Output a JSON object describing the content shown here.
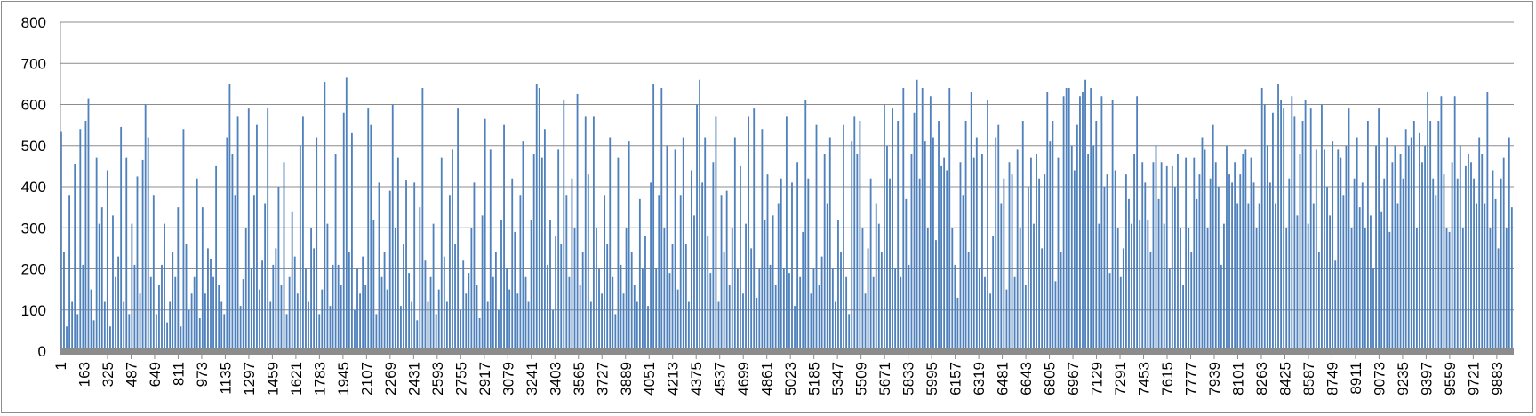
{
  "chart_data": {
    "type": "bar",
    "title": "",
    "xlabel": "",
    "ylabel": "",
    "ylim": [
      0,
      800
    ],
    "yticks": [
      "0",
      "100",
      "200",
      "300",
      "400",
      "500",
      "600",
      "700",
      "800"
    ],
    "x_range": [
      1,
      10000
    ],
    "x_tick_step": 162,
    "xticks": [
      "1",
      "163",
      "325",
      "487",
      "649",
      "811",
      "973",
      "1135",
      "1297",
      "1459",
      "1621",
      "1783",
      "1945",
      "2107",
      "2269",
      "2431",
      "2593",
      "2755",
      "2917",
      "3079",
      "3241",
      "3403",
      "3565",
      "3727",
      "3889",
      "4051",
      "4213",
      "4375",
      "4537",
      "4699",
      "4861",
      "5023",
      "5185",
      "5347",
      "5509",
      "5671",
      "5833",
      "5995",
      "6157",
      "6319",
      "6481",
      "6643",
      "6805",
      "6967",
      "7129",
      "7291",
      "7453",
      "7615",
      "7777",
      "7939",
      "8101",
      "8263",
      "8425",
      "8587",
      "8749",
      "8911",
      "9073",
      "9235",
      "9397",
      "9559",
      "9721",
      "9883"
    ],
    "grid": true,
    "legend": "none",
    "bar_color": "#4f81bd",
    "baseline_color": "#8c8c8c",
    "gridline_color": "#8c8c8c",
    "series": [
      {
        "values": [
          535,
          240,
          60,
          380,
          120,
          455,
          90,
          540,
          210,
          560,
          615,
          150,
          75,
          470,
          310,
          350,
          120,
          440,
          60,
          330,
          180,
          230,
          545,
          120,
          470,
          90,
          310,
          210,
          425,
          140,
          465,
          600,
          520,
          180,
          380,
          90,
          160,
          210,
          310,
          70,
          120,
          240,
          180,
          350,
          60,
          540,
          260,
          100,
          140,
          180,
          420,
          80,
          350,
          140,
          250,
          225,
          180,
          450,
          160,
          120,
          90,
          520,
          650,
          480,
          380,
          570,
          110,
          175,
          300,
          590,
          200,
          380,
          550,
          150,
          220,
          360,
          590,
          120,
          210,
          250,
          400,
          160,
          460,
          90,
          180,
          340,
          230,
          140,
          500,
          570,
          200,
          120,
          300,
          250,
          520,
          90,
          150,
          655,
          310,
          110,
          210,
          480,
          210,
          160,
          580,
          665,
          240,
          530,
          100,
          200,
          140,
          230,
          160,
          590,
          550,
          320,
          90,
          410,
          180,
          240,
          150,
          390,
          600,
          300,
          470,
          110,
          260,
          415,
          190,
          120,
          410,
          75,
          350,
          640,
          220,
          120,
          180,
          310,
          90,
          150,
          470,
          230,
          120,
          380,
          490,
          260,
          590,
          100,
          220,
          140,
          190,
          300,
          410,
          160,
          80,
          330,
          565,
          120,
          490,
          180,
          240,
          100,
          320,
          550,
          200,
          150,
          420,
          290,
          140,
          380,
          510,
          180,
          120,
          320,
          480,
          650,
          640,
          470,
          540,
          210,
          320,
          100,
          280,
          490,
          260,
          610,
          380,
          180,
          420,
          300,
          625,
          160,
          240,
          570,
          430,
          120,
          570,
          300,
          200,
          140,
          380,
          260,
          520,
          180,
          90,
          470,
          210,
          140,
          300,
          510,
          240,
          160,
          120,
          370,
          200,
          280,
          110,
          410,
          650,
          200,
          380,
          640,
          300,
          500,
          190,
          260,
          490,
          150,
          380,
          520,
          260,
          120,
          440,
          330,
          600,
          660,
          410,
          520,
          280,
          190,
          460,
          570,
          120,
          380,
          240,
          390,
          160,
          300,
          520,
          200,
          450,
          140,
          310,
          570,
          250,
          590,
          130,
          200,
          540,
          320,
          430,
          210,
          330,
          160,
          360,
          420,
          200,
          570,
          190,
          410,
          110,
          460,
          180,
          290,
          610,
          420,
          140,
          200,
          550,
          160,
          230,
          480,
          360,
          520,
          200,
          120,
          320,
          240,
          550,
          180,
          90,
          510,
          570,
          480,
          560,
          300,
          140,
          250,
          420,
          180,
          360,
          310,
          240,
          600,
          500,
          420,
          590,
          200,
          560,
          180,
          640,
          370,
          210,
          480,
          580,
          660,
          420,
          640,
          510,
          300,
          620,
          520,
          270,
          560,
          450,
          470,
          440,
          640,
          300,
          210,
          130,
          460,
          380,
          560,
          240,
          630,
          470,
          520,
          200,
          480,
          180,
          610,
          140,
          280,
          520,
          550,
          360,
          420,
          150,
          460,
          430,
          180,
          490,
          300,
          560,
          160,
          400,
          470,
          310,
          480,
          420,
          250,
          430,
          630,
          510,
          560,
          170,
          470,
          240,
          620,
          640,
          640,
          500,
          440,
          550,
          620,
          630,
          660,
          480,
          640,
          500,
          560,
          310,
          620,
          400,
          430,
          190,
          610,
          440,
          300,
          180,
          250,
          430,
          370,
          310,
          480,
          620,
          320,
          460,
          410,
          320,
          240,
          460,
          500,
          370,
          460,
          310,
          450,
          200,
          450,
          400,
          480,
          300,
          160,
          470,
          300,
          240,
          470,
          370,
          430,
          520,
          490,
          300,
          420,
          550,
          460,
          400,
          210,
          310,
          500,
          430,
          410,
          460,
          360,
          430,
          480,
          490,
          360,
          470,
          410,
          300,
          360,
          640,
          600,
          500,
          410,
          580,
          360,
          650,
          610,
          590,
          300,
          420,
          620,
          570,
          330,
          480,
          560,
          610,
          310,
          590,
          360,
          490,
          240,
          600,
          490,
          400,
          330,
          510,
          220,
          490,
          470,
          380,
          500,
          590,
          300,
          420,
          520,
          350,
          410,
          300,
          560,
          330,
          200,
          500,
          590,
          340,
          420,
          520,
          290,
          460,
          500,
          360,
          480,
          420,
          540,
          500,
          520,
          560,
          300,
          530,
          460,
          500,
          630,
          560,
          420,
          380,
          560,
          620,
          430,
          300,
          290,
          460,
          620,
          420,
          500,
          300,
          450,
          480,
          460,
          420,
          360,
          520,
          480,
          360,
          630,
          300,
          440,
          370,
          250,
          420,
          470,
          300,
          520,
          350
        ]
      }
    ]
  }
}
